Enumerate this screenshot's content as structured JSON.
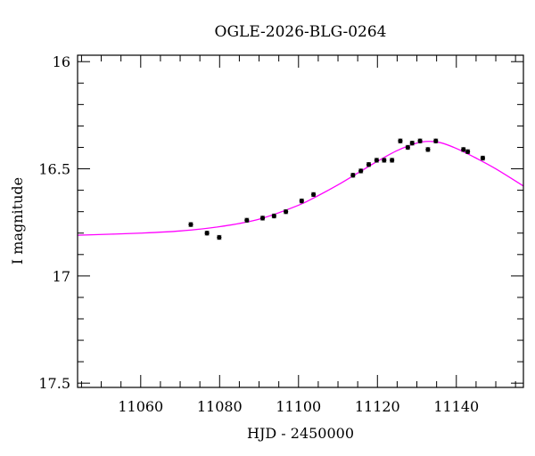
{
  "chart_data": {
    "type": "scatter",
    "title": "OGLE-2026-BLG-0264",
    "xlabel": "HJD - 2450000",
    "ylabel": "I magnitude",
    "xlim": [
      11044,
      11157
    ],
    "ylim": [
      15.97,
      17.52
    ],
    "y_inverted": true,
    "x_ticks": [
      11060,
      11080,
      11100,
      11120,
      11140
    ],
    "y_ticks": [
      16,
      16.5,
      17,
      17.5
    ],
    "y_tick_labels": [
      "16",
      "16.5",
      "17",
      "17.5"
    ],
    "grid": false,
    "colors": {
      "points": "#000000",
      "model": "#ff00ff"
    },
    "series": [
      {
        "kind": "points_with_errorbars",
        "x": [
          11072.7,
          11076.8,
          11079.9,
          11086.9,
          11090.9,
          11093.8,
          11096.8,
          11100.8,
          11103.8,
          11113.8,
          11115.8,
          11117.8,
          11119.8,
          11121.7,
          11123.7,
          11125.8,
          11127.7,
          11128.8,
          11130.8,
          11132.8,
          11134.8,
          11141.8,
          11142.9,
          11146.7
        ],
        "y": [
          16.76,
          16.8,
          16.82,
          16.74,
          16.73,
          16.72,
          16.7,
          16.65,
          16.62,
          16.53,
          16.51,
          16.48,
          16.46,
          16.46,
          16.46,
          16.37,
          16.4,
          16.38,
          16.37,
          16.41,
          16.37,
          16.41,
          16.42,
          16.45
        ],
        "err": 0.009
      },
      {
        "kind": "model_curve",
        "x": [
          11044,
          11060,
          11070,
          11080,
          11090,
          11100,
          11105,
          11110,
          11115,
          11120,
          11125,
          11130,
          11133,
          11136,
          11140,
          11145,
          11150,
          11157
        ],
        "y": [
          16.81,
          16.8,
          16.79,
          16.77,
          16.735,
          16.67,
          16.625,
          16.575,
          16.52,
          16.465,
          16.415,
          16.38,
          16.372,
          16.378,
          16.405,
          16.45,
          16.5,
          16.58
        ]
      }
    ]
  }
}
